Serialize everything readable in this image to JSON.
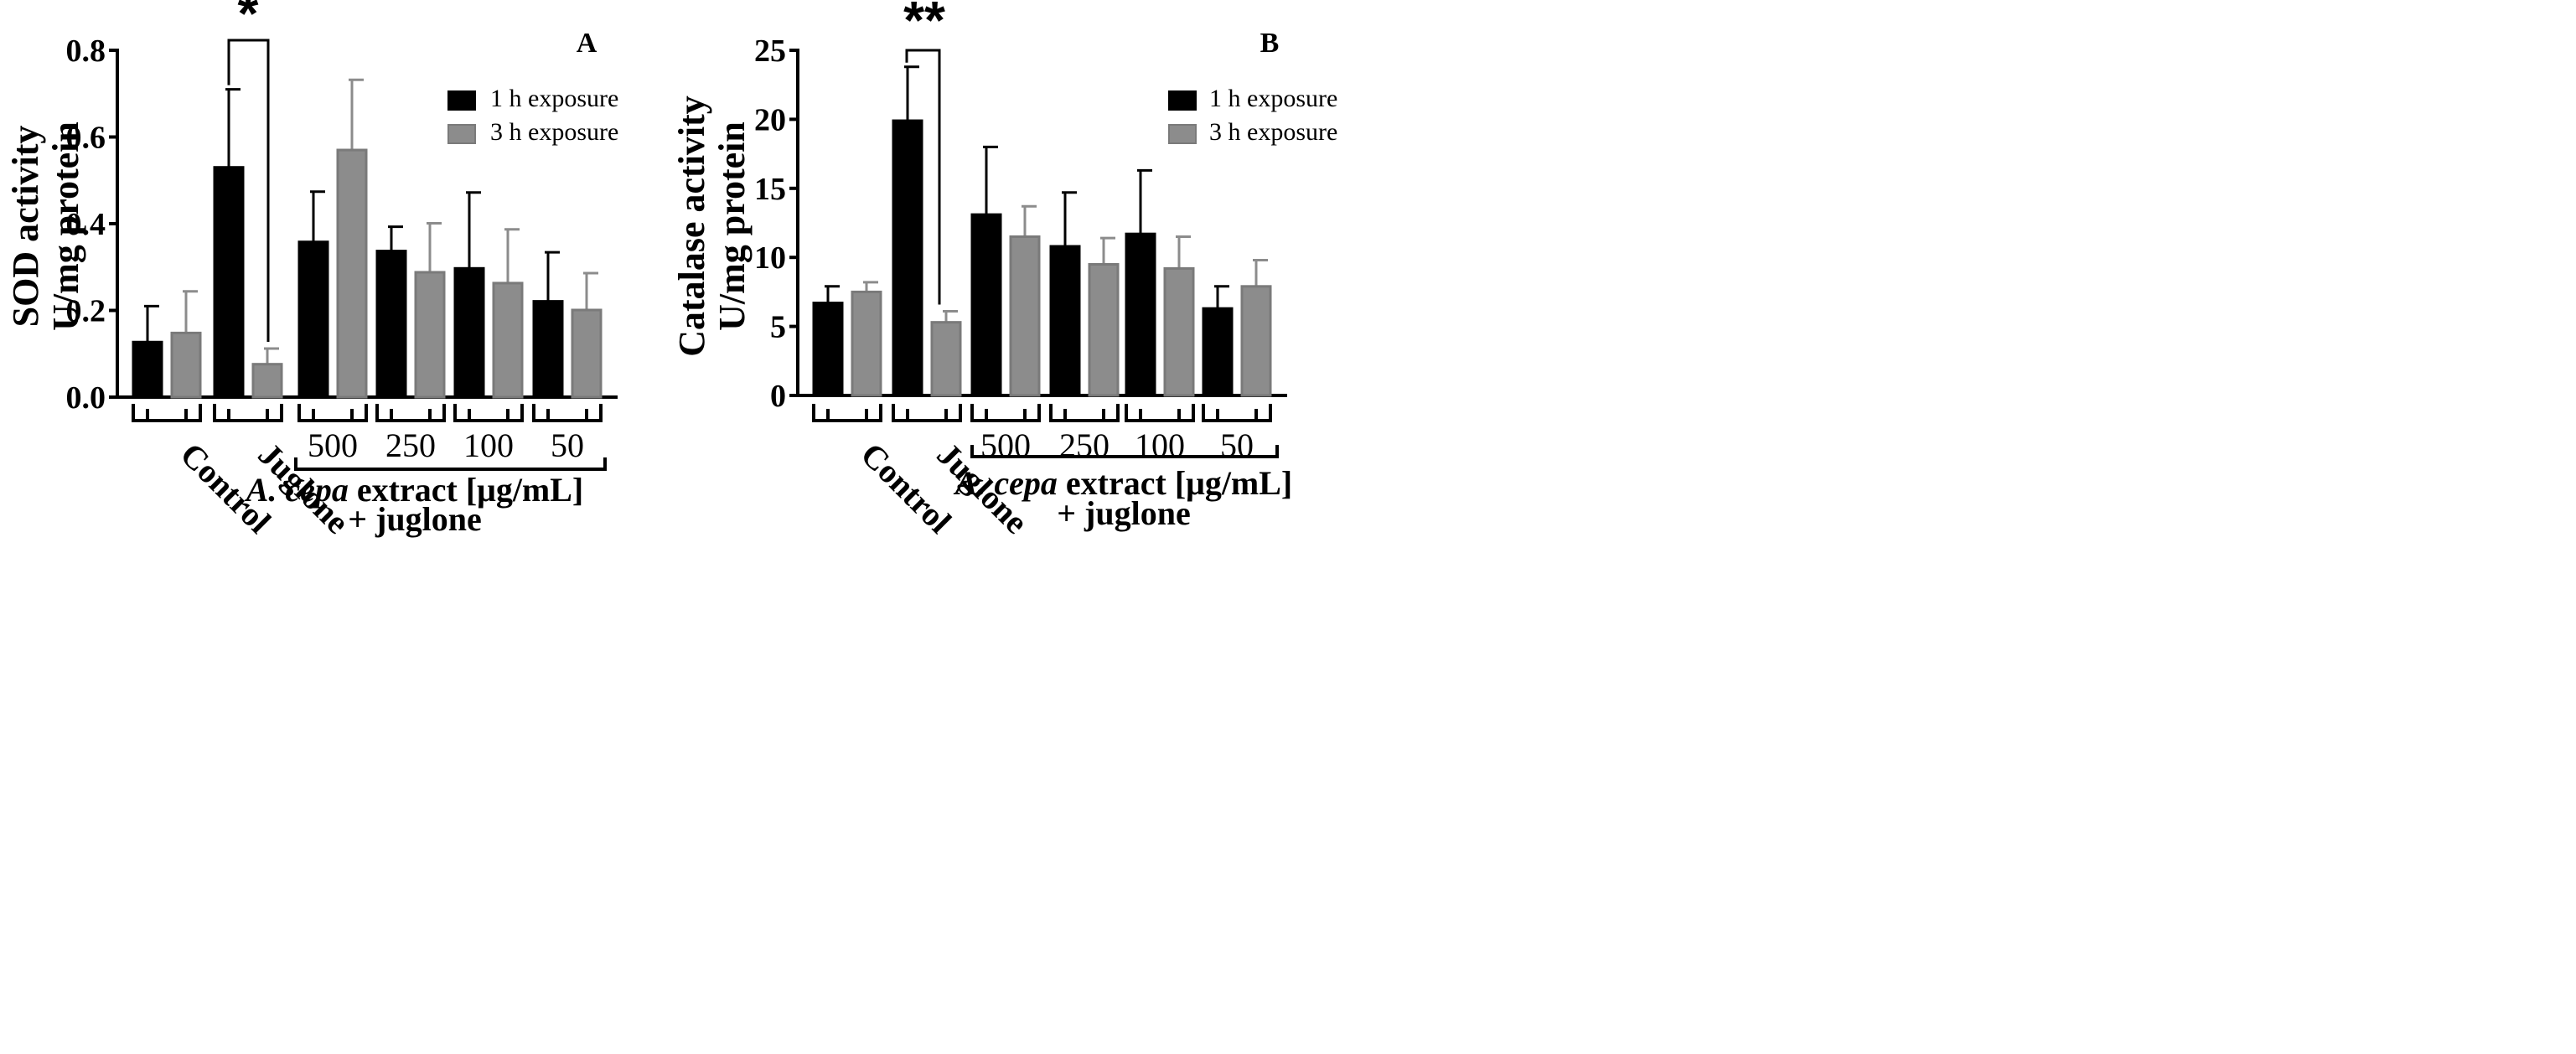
{
  "chart_data": [
    {
      "type": "bar",
      "panel": "A",
      "ylabel_line1": "SOD activity",
      "ylabel_line2": "U/mg protein",
      "ylim": [
        0,
        0.8
      ],
      "yticks": [
        "0.0",
        "0.2",
        "0.4",
        "0.6",
        "0.8"
      ],
      "ytick_values": [
        0,
        0.2,
        0.4,
        0.6,
        0.8
      ],
      "groups": [
        "Control",
        "Juglone",
        "500",
        "250",
        "100",
        "50"
      ],
      "series": [
        {
          "name": "1 h exposure",
          "color": "#000000",
          "values": [
            0.127,
            0.53,
            0.358,
            0.337,
            0.297,
            0.221
          ],
          "errors": [
            0.083,
            0.18,
            0.116,
            0.056,
            0.175,
            0.113
          ]
        },
        {
          "name": "3 h exposure",
          "color": "#8c8c8c",
          "values": [
            0.148,
            0.076,
            0.57,
            0.288,
            0.263,
            0.201
          ],
          "errors": [
            0.096,
            0.036,
            0.162,
            0.113,
            0.124,
            0.085
          ]
        }
      ],
      "significance": {
        "label": "*",
        "group_index": 1
      },
      "xlabel_line1_italic": "A. cepa",
      "xlabel_line1_rest": " extract [μg/mL]",
      "xlabel_line2": "+ juglone"
    },
    {
      "type": "bar",
      "panel": "B",
      "ylabel_line1": "Catalase activity",
      "ylabel_line2": "U/mg protein",
      "ylim": [
        0,
        25
      ],
      "yticks": [
        "0",
        "5",
        "10",
        "15",
        "20",
        "25"
      ],
      "ytick_values": [
        0,
        5,
        10,
        15,
        20,
        25
      ],
      "groups": [
        "Control",
        "Juglone",
        "500",
        "250",
        "100",
        "50"
      ],
      "series": [
        {
          "name": "1 h exposure",
          "color": "#000000",
          "values": [
            6.7,
            19.9,
            13.1,
            10.8,
            11.7,
            6.3
          ],
          "errors": [
            1.2,
            3.9,
            4.9,
            3.9,
            4.6,
            1.6
          ]
        },
        {
          "name": "3 h exposure",
          "color": "#8c8c8c",
          "values": [
            7.5,
            5.3,
            11.5,
            9.5,
            9.2,
            7.9
          ],
          "errors": [
            0.7,
            0.8,
            2.2,
            1.9,
            2.3,
            1.9
          ]
        }
      ],
      "significance": {
        "label": "**",
        "group_index": 1
      },
      "xlabel_line1_italic": "A. cepa",
      "xlabel_line1_rest": " extract [μg/mL]",
      "xlabel_line2": "+ juglone"
    }
  ],
  "legend": [
    "1 h exposure",
    "3 h exposure"
  ],
  "colors": {
    "series1": "#000000",
    "series2": "#8c8c8c"
  }
}
